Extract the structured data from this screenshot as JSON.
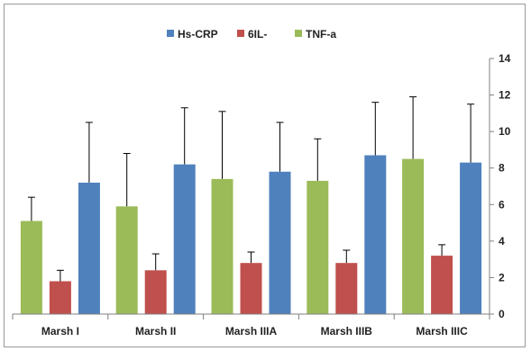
{
  "chart_data": {
    "type": "bar",
    "title": "",
    "xlabel": "",
    "ylabel": "",
    "ylim": [
      0,
      14
    ],
    "yticks": [
      0,
      2,
      4,
      6,
      8,
      10,
      12,
      14
    ],
    "y_axis_side": "right",
    "grid": false,
    "legend_position": "top",
    "legend_order": [
      "Hs-CRP",
      "6IL-",
      "TNF-a"
    ],
    "categories": [
      "Marsh I",
      "Marsh II",
      "Marsh IIIA",
      "Marsh IIIB",
      "Marsh IIIC"
    ],
    "series": [
      {
        "name": "TNF-a",
        "color": "#9bbb59",
        "values": [
          5.1,
          5.9,
          7.4,
          7.3,
          8.5
        ],
        "error_upper": [
          1.3,
          2.9,
          3.7,
          2.3,
          3.4
        ]
      },
      {
        "name": "6IL-",
        "color": "#c0504d",
        "values": [
          1.8,
          2.4,
          2.8,
          2.8,
          3.2
        ],
        "error_upper": [
          0.6,
          0.9,
          0.6,
          0.7,
          0.6
        ]
      },
      {
        "name": "Hs-CRP",
        "color": "#4f81bd",
        "values": [
          7.2,
          8.2,
          7.8,
          8.7,
          8.3
        ],
        "error_upper": [
          3.3,
          3.1,
          2.7,
          2.9,
          3.2
        ]
      }
    ]
  }
}
